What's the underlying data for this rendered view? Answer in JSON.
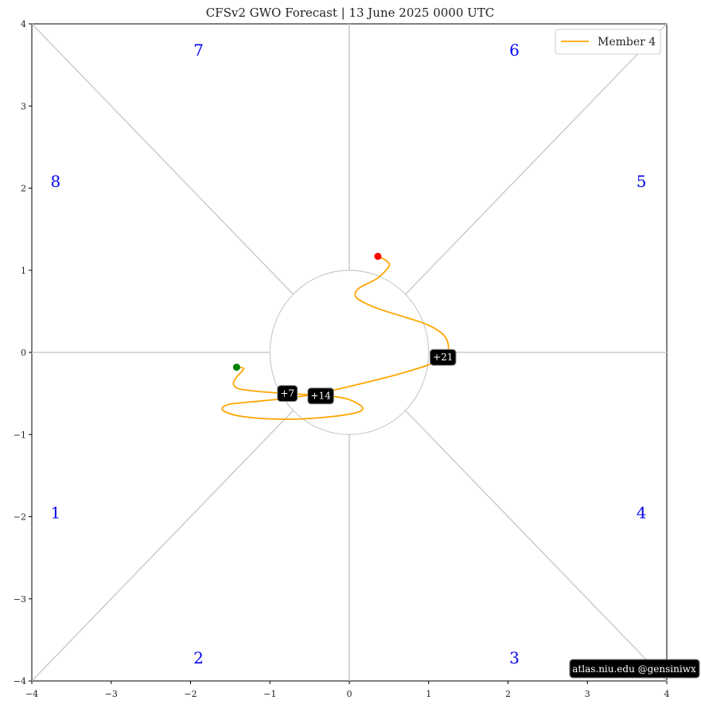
{
  "title": "CFSv2 GWO Forecast   |   13  June  2025 0000 UTC",
  "watermark": "atlas.niu.edu  @gensiniwx",
  "legend": {
    "label": "Member 4",
    "color": "#ffa500"
  },
  "phases": [
    {
      "num": "1",
      "x": -3.7,
      "y": -1.95
    },
    {
      "num": "2",
      "x": -1.9,
      "y": -3.72
    },
    {
      "num": "3",
      "x": 2.08,
      "y": -3.72
    },
    {
      "num": "4",
      "x": 3.68,
      "y": -1.95
    },
    {
      "num": "5",
      "x": 3.68,
      "y": 2.08
    },
    {
      "num": "6",
      "x": 2.08,
      "y": 3.68
    },
    {
      "num": "7",
      "x": -1.9,
      "y": 3.68
    },
    {
      "num": "8",
      "x": -3.7,
      "y": 2.08
    }
  ],
  "chart_data": {
    "type": "line",
    "title": "CFSv2 GWO Forecast   |   13  June  2025 0000 UTC",
    "xlim": [
      -4,
      4
    ],
    "ylim": [
      -4,
      4
    ],
    "xticks": [
      "−4",
      "−3",
      "−2",
      "−1",
      "0",
      "1",
      "2",
      "3",
      "4"
    ],
    "yticks": [
      "−4",
      "−3",
      "−2",
      "−1",
      "0",
      "1",
      "2",
      "3",
      "4"
    ],
    "unit_circle_radius": 1,
    "series": [
      {
        "name": "Member 4",
        "color": "#ffa500",
        "x": [
          -1.42,
          -1.33,
          -1.42,
          -1.46,
          -1.4,
          -1.2,
          -0.95,
          -0.75,
          -0.6,
          -0.35,
          -0.05,
          0.1,
          0.17,
          0.1,
          -0.2,
          -0.6,
          -1.0,
          -1.35,
          -1.55,
          -1.6,
          -1.5,
          -1.1,
          -0.7,
          -0.3,
          0.15,
          0.6,
          1.0,
          1.2,
          1.25,
          1.2,
          1.0,
          0.7,
          0.4,
          0.2,
          0.08,
          0.12,
          0.35,
          0.5,
          0.46,
          0.36
        ],
        "y": [
          -0.18,
          -0.2,
          -0.3,
          -0.38,
          -0.44,
          -0.47,
          -0.49,
          -0.5,
          -0.51,
          -0.52,
          -0.56,
          -0.62,
          -0.68,
          -0.73,
          -0.78,
          -0.81,
          -0.81,
          -0.78,
          -0.73,
          -0.68,
          -0.63,
          -0.59,
          -0.55,
          -0.48,
          -0.38,
          -0.27,
          -0.15,
          -0.05,
          0.05,
          0.2,
          0.33,
          0.43,
          0.52,
          0.6,
          0.68,
          0.78,
          0.9,
          1.05,
          1.12,
          1.17
        ]
      }
    ],
    "start_point": {
      "x": -1.42,
      "y": -0.18,
      "color": "#008000"
    },
    "end_point": {
      "x": 0.36,
      "y": 1.17,
      "color": "#ff0000"
    },
    "day_labels": [
      {
        "text": "+7",
        "x": -0.78,
        "y": -0.5
      },
      {
        "text": "+14",
        "x": -0.36,
        "y": -0.53
      },
      {
        "text": "+21",
        "x": 1.18,
        "y": -0.06
      }
    ]
  }
}
